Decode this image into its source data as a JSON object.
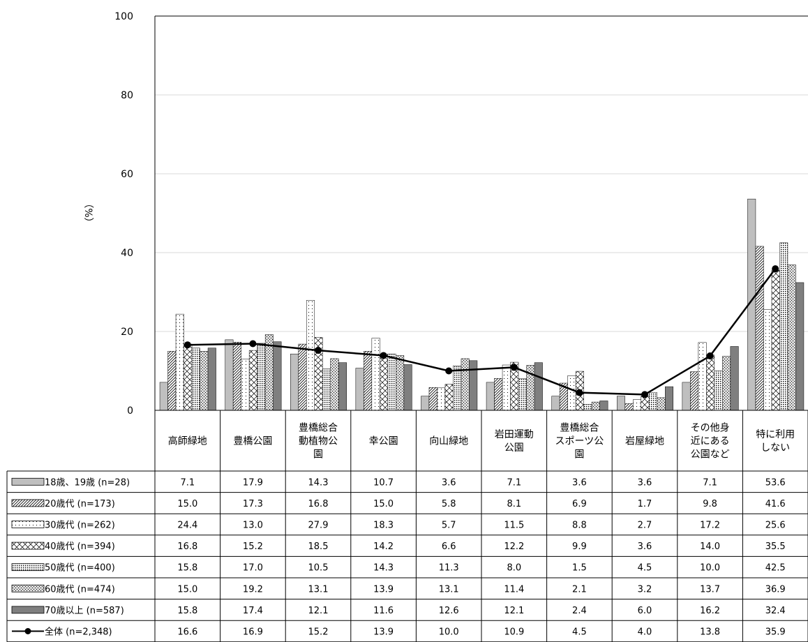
{
  "chart_data": {
    "type": "bar",
    "ylabel": "（%）",
    "ylim": [
      0,
      100
    ],
    "yticks": [
      0,
      20,
      40,
      60,
      80,
      100
    ],
    "grid": true,
    "categories": [
      [
        "高師緑地"
      ],
      [
        "豊橋公園"
      ],
      [
        "豊橋総合",
        "動植物公",
        "園"
      ],
      [
        "幸公園"
      ],
      [
        "向山緑地"
      ],
      [
        "岩田運動",
        "公園"
      ],
      [
        "豊橋総合",
        "スポーツ公",
        "園"
      ],
      [
        "岩屋緑地"
      ],
      [
        "その他身",
        "近にある",
        "公園など"
      ],
      [
        "特に利用",
        "しない"
      ]
    ],
    "series": [
      {
        "name": "18歳、19歳 (n=28)",
        "pattern": "solid-light",
        "color": "#bfbfbf",
        "values": [
          7.1,
          17.9,
          14.3,
          10.7,
          3.6,
          7.1,
          3.6,
          3.6,
          7.1,
          53.6
        ]
      },
      {
        "name": "20歳代 (n=173)",
        "pattern": "diagonal",
        "values": [
          15.0,
          17.3,
          16.8,
          15.0,
          5.8,
          8.1,
          6.9,
          1.7,
          9.8,
          41.6
        ]
      },
      {
        "name": "30歳代 (n=262)",
        "pattern": "dots",
        "values": [
          24.4,
          13.0,
          27.9,
          18.3,
          5.7,
          11.5,
          8.8,
          2.7,
          17.2,
          25.6
        ]
      },
      {
        "name": "40歳代 (n=394)",
        "pattern": "crosshatch",
        "values": [
          16.8,
          15.2,
          18.5,
          14.2,
          6.6,
          12.2,
          9.9,
          3.6,
          14.0,
          35.5
        ]
      },
      {
        "name": "50歳代 (n=400)",
        "pattern": "grid",
        "values": [
          15.8,
          17.0,
          10.5,
          14.3,
          11.3,
          8.0,
          1.5,
          4.5,
          10.0,
          42.5
        ]
      },
      {
        "name": "60歳代 (n=474)",
        "pattern": "stipple",
        "values": [
          15.0,
          19.2,
          13.1,
          13.9,
          13.1,
          11.4,
          2.1,
          3.2,
          13.7,
          36.9
        ]
      },
      {
        "name": "70歳以上 (n=587)",
        "pattern": "solid-dark",
        "color": "#7f7f7f",
        "values": [
          15.8,
          17.4,
          12.1,
          11.6,
          12.6,
          12.1,
          2.4,
          6.0,
          16.2,
          32.4
        ]
      }
    ],
    "line_series": {
      "name": "全体 (n=2,348)",
      "color": "#000000",
      "values": [
        16.6,
        16.9,
        15.2,
        13.9,
        10.0,
        10.9,
        4.5,
        4.0,
        13.8,
        35.9
      ]
    },
    "table_values": [
      [
        "7.1",
        "17.9",
        "14.3",
        "10.7",
        "3.6",
        "7.1",
        "3.6",
        "3.6",
        "7.1",
        "53.6"
      ],
      [
        "15.0",
        "17.3",
        "16.8",
        "15.0",
        "5.8",
        "8.1",
        "6.9",
        "1.7",
        "9.8",
        "41.6"
      ],
      [
        "24.4",
        "13.0",
        "27.9",
        "18.3",
        "5.7",
        "11.5",
        "8.8",
        "2.7",
        "17.2",
        "25.6"
      ],
      [
        "16.8",
        "15.2",
        "18.5",
        "14.2",
        "6.6",
        "12.2",
        "9.9",
        "3.6",
        "14.0",
        "35.5"
      ],
      [
        "15.8",
        "17.0",
        "10.5",
        "14.3",
        "11.3",
        "8.0",
        "1.5",
        "4.5",
        "10.0",
        "42.5"
      ],
      [
        "15.0",
        "19.2",
        "13.1",
        "13.9",
        "13.1",
        "11.4",
        "2.1",
        "3.2",
        "13.7",
        "36.9"
      ],
      [
        "15.8",
        "17.4",
        "12.1",
        "11.6",
        "12.6",
        "12.1",
        "2.4",
        "6.0",
        "16.2",
        "32.4"
      ],
      [
        "16.6",
        "16.9",
        "15.2",
        "13.9",
        "10.0",
        "10.9",
        "4.5",
        "4.0",
        "13.8",
        "35.9"
      ]
    ]
  }
}
